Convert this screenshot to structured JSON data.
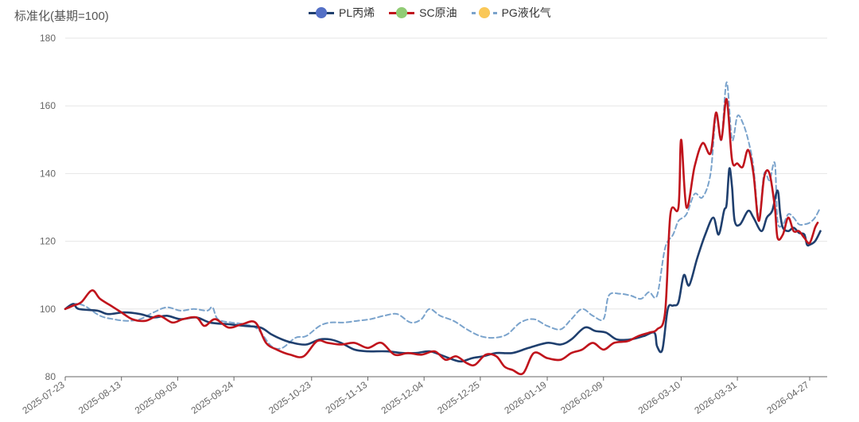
{
  "chart_data": {
    "type": "line",
    "ylabel": "标准化(基期=100)",
    "ylim": [
      80,
      180
    ],
    "yticks": [
      80,
      100,
      120,
      140,
      160,
      180
    ],
    "xlim": [
      "2025-07-23",
      "2026-04-27"
    ],
    "xticks": [
      "2025-07-23",
      "2025-08-13",
      "2025-09-03",
      "2025-09-24",
      "2025-10-23",
      "2025-11-13",
      "2025-12-04",
      "2025-12-25",
      "2026-01-19",
      "2026-02-09",
      "2026-03-10",
      "2026-03-31",
      "2026-04-27"
    ],
    "grid": "horizontal",
    "legend": "top-center",
    "series": [
      {
        "name": "PL丙烯",
        "color": "#1f3f6e",
        "marker_color": "#5470c6",
        "style": "solid",
        "points": [
          [
            "2025-07-23",
            100
          ],
          [
            "2025-07-26",
            101.5
          ],
          [
            "2025-07-28",
            100
          ],
          [
            "2025-08-04",
            99.5
          ],
          [
            "2025-08-08",
            98.5
          ],
          [
            "2025-08-14",
            99
          ],
          [
            "2025-08-20",
            98.5
          ],
          [
            "2025-08-25",
            97.5
          ],
          [
            "2025-08-30",
            98
          ],
          [
            "2025-09-04",
            97
          ],
          [
            "2025-09-10",
            97.5
          ],
          [
            "2025-09-15",
            96
          ],
          [
            "2025-09-22",
            95.5
          ],
          [
            "2025-09-28",
            95
          ],
          [
            "2025-10-04",
            94.5
          ],
          [
            "2025-10-08",
            92.5
          ],
          [
            "2025-10-12",
            91
          ],
          [
            "2025-10-16",
            90
          ],
          [
            "2025-10-21",
            89.5
          ],
          [
            "2025-10-26",
            91
          ],
          [
            "2025-10-30",
            91
          ],
          [
            "2025-11-03",
            90
          ],
          [
            "2025-11-08",
            88
          ],
          [
            "2025-11-13",
            87.5
          ],
          [
            "2025-11-20",
            87.5
          ],
          [
            "2025-11-26",
            87
          ],
          [
            "2025-12-01",
            87
          ],
          [
            "2025-12-06",
            87.5
          ],
          [
            "2025-12-10",
            86.5
          ],
          [
            "2025-12-15",
            85
          ],
          [
            "2025-12-18",
            84.5
          ],
          [
            "2025-12-22",
            85.5
          ],
          [
            "2025-12-26",
            86
          ],
          [
            "2025-12-31",
            87
          ],
          [
            "2026-01-06",
            87
          ],
          [
            "2026-01-12",
            88.5
          ],
          [
            "2026-01-19",
            90
          ],
          [
            "2026-01-24",
            89.5
          ],
          [
            "2026-01-28",
            91
          ],
          [
            "2026-02-02",
            94.5
          ],
          [
            "2026-02-06",
            93.5
          ],
          [
            "2026-02-10",
            93
          ],
          [
            "2026-02-14",
            91
          ],
          [
            "2026-02-19",
            91
          ],
          [
            "2026-02-24",
            92
          ],
          [
            "2026-02-28",
            93
          ],
          [
            "2026-03-01",
            89
          ],
          [
            "2026-03-03",
            88
          ],
          [
            "2026-03-05",
            100
          ],
          [
            "2026-03-07",
            101
          ],
          [
            "2026-03-09",
            102
          ],
          [
            "2026-03-11",
            110
          ],
          [
            "2026-03-13",
            107
          ],
          [
            "2026-03-16",
            115
          ],
          [
            "2026-03-19",
            122
          ],
          [
            "2026-03-22",
            127
          ],
          [
            "2026-03-24",
            122
          ],
          [
            "2026-03-26",
            129
          ],
          [
            "2026-03-27",
            131
          ],
          [
            "2026-03-28",
            141.5
          ],
          [
            "2026-03-29",
            136
          ],
          [
            "2026-03-30",
            126
          ],
          [
            "2026-04-01",
            125
          ],
          [
            "2026-04-04",
            129
          ],
          [
            "2026-04-06",
            127
          ],
          [
            "2026-04-09",
            123
          ],
          [
            "2026-04-11",
            127
          ],
          [
            "2026-04-13",
            129
          ],
          [
            "2026-04-15",
            135
          ],
          [
            "2026-04-16",
            128
          ],
          [
            "2026-04-17",
            124
          ],
          [
            "2026-04-19",
            123
          ],
          [
            "2026-04-21",
            124
          ],
          [
            "2026-04-23",
            122.5
          ],
          [
            "2026-04-25",
            122
          ],
          [
            "2026-04-26",
            119
          ],
          [
            "2026-04-27",
            119
          ],
          [
            "2026-04-29",
            120
          ],
          [
            "2026-05-01",
            123
          ]
        ]
      },
      {
        "name": "SC原油",
        "color": "#c0141c",
        "marker_color": "#91cc75",
        "style": "solid",
        "points": [
          [
            "2025-07-23",
            100
          ],
          [
            "2025-07-26",
            101
          ],
          [
            "2025-07-29",
            102
          ],
          [
            "2025-08-02",
            105.5
          ],
          [
            "2025-08-05",
            103
          ],
          [
            "2025-08-09",
            101
          ],
          [
            "2025-08-13",
            99
          ],
          [
            "2025-08-17",
            97
          ],
          [
            "2025-08-22",
            96.5
          ],
          [
            "2025-08-27",
            98
          ],
          [
            "2025-09-01",
            96
          ],
          [
            "2025-09-05",
            97
          ],
          [
            "2025-09-10",
            97.5
          ],
          [
            "2025-09-13",
            95
          ],
          [
            "2025-09-17",
            97
          ],
          [
            "2025-09-22",
            94.5
          ],
          [
            "2025-09-27",
            95.5
          ],
          [
            "2025-10-02",
            96
          ],
          [
            "2025-10-06",
            90
          ],
          [
            "2025-10-10",
            88
          ],
          [
            "2025-10-15",
            86.5
          ],
          [
            "2025-10-20",
            86
          ],
          [
            "2025-10-25",
            90.5
          ],
          [
            "2025-10-29",
            90
          ],
          [
            "2025-11-03",
            89.5
          ],
          [
            "2025-11-08",
            90
          ],
          [
            "2025-11-13",
            88.5
          ],
          [
            "2025-11-18",
            90
          ],
          [
            "2025-11-23",
            86.5
          ],
          [
            "2025-11-28",
            87
          ],
          [
            "2025-12-03",
            86.5
          ],
          [
            "2025-12-08",
            87.5
          ],
          [
            "2025-12-12",
            85
          ],
          [
            "2025-12-16",
            86
          ],
          [
            "2025-12-20",
            84
          ],
          [
            "2025-12-23",
            83.5
          ],
          [
            "2025-12-27",
            86.5
          ],
          [
            "2025-12-31",
            86
          ],
          [
            "2026-01-03",
            83
          ],
          [
            "2026-01-06",
            82
          ],
          [
            "2026-01-10",
            81
          ],
          [
            "2026-01-14",
            87
          ],
          [
            "2026-01-19",
            85.5
          ],
          [
            "2026-01-24",
            85
          ],
          [
            "2026-01-28",
            87
          ],
          [
            "2026-02-01",
            88
          ],
          [
            "2026-02-05",
            90
          ],
          [
            "2026-02-09",
            88
          ],
          [
            "2026-02-13",
            90
          ],
          [
            "2026-02-18",
            90.5
          ],
          [
            "2026-02-22",
            92
          ],
          [
            "2026-02-26",
            93
          ],
          [
            "2026-03-01",
            94
          ],
          [
            "2026-03-04",
            99
          ],
          [
            "2026-03-06",
            128
          ],
          [
            "2026-03-09",
            130
          ],
          [
            "2026-03-10",
            150
          ],
          [
            "2026-03-12",
            130
          ],
          [
            "2026-03-15",
            142
          ],
          [
            "2026-03-18",
            149
          ],
          [
            "2026-03-21",
            146
          ],
          [
            "2026-03-23",
            158
          ],
          [
            "2026-03-25",
            150
          ],
          [
            "2026-03-27",
            162
          ],
          [
            "2026-03-29",
            144
          ],
          [
            "2026-03-31",
            143
          ],
          [
            "2026-04-02",
            142
          ],
          [
            "2026-04-04",
            147
          ],
          [
            "2026-04-06",
            140
          ],
          [
            "2026-04-08",
            126
          ],
          [
            "2026-04-10",
            139
          ],
          [
            "2026-04-12",
            140
          ],
          [
            "2026-04-14",
            130
          ],
          [
            "2026-04-15",
            121
          ],
          [
            "2026-04-17",
            122
          ],
          [
            "2026-04-19",
            127
          ],
          [
            "2026-04-21",
            123
          ],
          [
            "2026-04-23",
            123
          ],
          [
            "2026-04-25",
            121
          ],
          [
            "2026-04-27",
            119.5
          ],
          [
            "2026-04-29",
            124
          ],
          [
            "2026-04-30",
            125.5
          ]
        ]
      },
      {
        "name": "PG液化气",
        "color": "#7aa3cc",
        "marker_color": "#fac858",
        "style": "dashed",
        "points": [
          [
            "2025-07-23",
            100
          ],
          [
            "2025-07-26",
            101.5
          ],
          [
            "2025-07-30",
            101
          ],
          [
            "2025-08-05",
            98
          ],
          [
            "2025-08-10",
            97
          ],
          [
            "2025-08-15",
            96.5
          ],
          [
            "2025-08-20",
            97
          ],
          [
            "2025-08-25",
            99
          ],
          [
            "2025-08-30",
            100.5
          ],
          [
            "2025-09-04",
            99.5
          ],
          [
            "2025-09-09",
            100
          ],
          [
            "2025-09-14",
            99.5
          ],
          [
            "2025-09-16",
            100.5
          ],
          [
            "2025-09-18",
            97
          ],
          [
            "2025-09-23",
            96
          ],
          [
            "2025-09-28",
            95.5
          ],
          [
            "2025-10-03",
            94
          ],
          [
            "2025-10-08",
            89
          ],
          [
            "2025-10-12",
            88.5
          ],
          [
            "2025-10-17",
            91.5
          ],
          [
            "2025-10-21",
            92
          ],
          [
            "2025-10-26",
            95
          ],
          [
            "2025-10-30",
            96
          ],
          [
            "2025-11-04",
            96
          ],
          [
            "2025-11-09",
            96.5
          ],
          [
            "2025-11-14",
            97
          ],
          [
            "2025-11-19",
            98
          ],
          [
            "2025-11-24",
            98.5
          ],
          [
            "2025-11-29",
            96
          ],
          [
            "2025-12-03",
            97
          ],
          [
            "2025-12-06",
            100
          ],
          [
            "2025-12-10",
            98
          ],
          [
            "2025-12-15",
            96.5
          ],
          [
            "2025-12-20",
            94
          ],
          [
            "2025-12-25",
            92
          ],
          [
            "2025-12-30",
            91.5
          ],
          [
            "2026-01-04",
            92.5
          ],
          [
            "2026-01-09",
            96
          ],
          [
            "2026-01-14",
            97
          ],
          [
            "2026-01-19",
            95
          ],
          [
            "2026-01-24",
            94
          ],
          [
            "2026-01-28",
            97
          ],
          [
            "2026-02-01",
            100
          ],
          [
            "2026-02-05",
            98
          ],
          [
            "2026-02-09",
            97
          ],
          [
            "2026-02-11",
            104
          ],
          [
            "2026-02-15",
            104.5
          ],
          [
            "2026-02-19",
            104
          ],
          [
            "2026-02-23",
            103
          ],
          [
            "2026-02-26",
            105
          ],
          [
            "2026-03-01",
            104
          ],
          [
            "2026-03-04",
            118
          ],
          [
            "2026-03-07",
            122
          ],
          [
            "2026-03-09",
            126
          ],
          [
            "2026-03-12",
            128
          ],
          [
            "2026-03-15",
            134
          ],
          [
            "2026-03-18",
            133
          ],
          [
            "2026-03-21",
            140
          ],
          [
            "2026-03-23",
            157
          ],
          [
            "2026-03-25",
            150
          ],
          [
            "2026-03-27",
            167
          ],
          [
            "2026-03-29",
            150
          ],
          [
            "2026-03-31",
            157
          ],
          [
            "2026-04-02",
            155
          ],
          [
            "2026-04-04",
            150
          ],
          [
            "2026-04-06",
            142
          ],
          [
            "2026-04-08",
            127
          ],
          [
            "2026-04-10",
            140
          ],
          [
            "2026-04-12",
            138
          ],
          [
            "2026-04-14",
            143
          ],
          [
            "2026-04-15",
            126
          ],
          [
            "2026-04-17",
            125
          ],
          [
            "2026-04-19",
            128
          ],
          [
            "2026-04-21",
            127
          ],
          [
            "2026-04-23",
            125
          ],
          [
            "2026-04-25",
            125
          ],
          [
            "2026-04-27",
            125.5
          ],
          [
            "2026-04-29",
            127
          ],
          [
            "2026-05-01",
            130
          ]
        ]
      }
    ]
  }
}
